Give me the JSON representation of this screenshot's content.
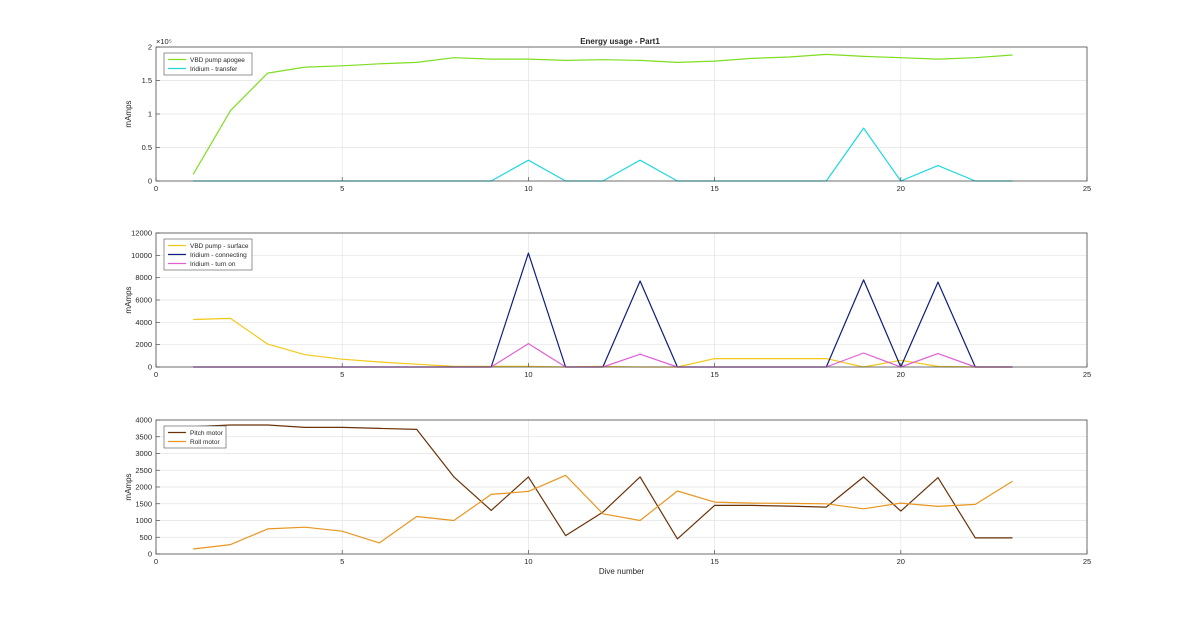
{
  "figure": {
    "title": "Energy usage - Part1"
  },
  "chart_data": [
    {
      "type": "line",
      "title": "Energy usage - Part1",
      "xlabel": "",
      "ylabel": "mAmps",
      "xlim": [
        0,
        25
      ],
      "ylim": [
        0,
        200000
      ],
      "x_ticks": [
        0,
        5,
        10,
        15,
        20,
        25
      ],
      "y_ticks": [
        0,
        50000,
        100000,
        150000,
        200000
      ],
      "y_tick_labels": [
        "0",
        "0.5",
        "1",
        "1.5",
        "2"
      ],
      "y_exponent_label": "×10⁵",
      "grid": true,
      "legend_position": "top-left",
      "x": [
        1,
        2,
        3,
        4,
        5,
        6,
        7,
        8,
        9,
        10,
        11,
        12,
        13,
        14,
        15,
        16,
        17,
        18,
        19,
        20,
        21,
        22,
        23
      ],
      "series": [
        {
          "name": "VBD pump apogee",
          "color": "#7fdd22",
          "values": [
            10000,
            105000,
            161000,
            170000,
            172000,
            175000,
            177000,
            184000,
            182000,
            182000,
            180000,
            181000,
            180000,
            177000,
            179000,
            183000,
            185000,
            189000,
            186000,
            184000,
            182000,
            184000,
            188000
          ]
        },
        {
          "name": "Iridium - transfer",
          "color": "#1fd7e0",
          "values": [
            0,
            0,
            0,
            0,
            0,
            0,
            0,
            0,
            0,
            31000,
            0,
            0,
            31000,
            0,
            0,
            0,
            0,
            0,
            79000,
            0,
            23000,
            0,
            0
          ]
        }
      ]
    },
    {
      "type": "line",
      "title": "",
      "xlabel": "",
      "ylabel": "mAmps",
      "xlim": [
        0,
        25
      ],
      "ylim": [
        0,
        12000
      ],
      "x_ticks": [
        0,
        5,
        10,
        15,
        20,
        25
      ],
      "y_ticks": [
        0,
        2000,
        4000,
        6000,
        8000,
        10000,
        12000
      ],
      "y_tick_labels": [
        "0",
        "2000",
        "4000",
        "6000",
        "8000",
        "10000",
        "12000"
      ],
      "grid": true,
      "legend_position": "top-left",
      "x": [
        1,
        2,
        3,
        4,
        5,
        6,
        7,
        8,
        9,
        10,
        11,
        12,
        13,
        14,
        15,
        16,
        17,
        18,
        19,
        20,
        21,
        22,
        23
      ],
      "series": [
        {
          "name": "VBD pump - surface",
          "color": "#f2c819",
          "values": [
            4250,
            4350,
            2050,
            1100,
            700,
            450,
            250,
            50,
            50,
            50,
            0,
            50,
            0,
            0,
            750,
            750,
            750,
            750,
            0,
            600,
            50,
            0,
            0
          ]
        },
        {
          "name": "Iridium - connecting",
          "color": "#0c1e7a",
          "values": [
            0,
            0,
            0,
            0,
            0,
            0,
            0,
            0,
            0,
            10200,
            0,
            0,
            7700,
            0,
            0,
            0,
            0,
            0,
            7800,
            0,
            7600,
            0,
            0
          ]
        },
        {
          "name": "Iridium - turn on",
          "color": "#e05ed6",
          "values": [
            0,
            0,
            0,
            0,
            0,
            0,
            0,
            0,
            0,
            2100,
            0,
            0,
            1150,
            0,
            0,
            0,
            0,
            0,
            1250,
            0,
            1200,
            0,
            0
          ]
        }
      ]
    },
    {
      "type": "line",
      "title": "",
      "xlabel": "Dive number",
      "ylabel": "mAmps",
      "xlim": [
        0,
        25
      ],
      "ylim": [
        0,
        4000
      ],
      "x_ticks": [
        0,
        5,
        10,
        15,
        20,
        25
      ],
      "y_ticks": [
        0,
        500,
        1000,
        1500,
        2000,
        2500,
        3000,
        3500,
        4000
      ],
      "y_tick_labels": [
        "0",
        "500",
        "1000",
        "1500",
        "2000",
        "2500",
        "3000",
        "3500",
        "4000"
      ],
      "grid": true,
      "legend_position": "top-left",
      "x": [
        1,
        2,
        3,
        4,
        5,
        6,
        7,
        8,
        9,
        10,
        11,
        12,
        13,
        14,
        15,
        16,
        17,
        18,
        19,
        20,
        21,
        22,
        23
      ],
      "series": [
        {
          "name": "Pitch motor",
          "color": "#6b3208",
          "values": [
            3800,
            3850,
            3850,
            3780,
            3780,
            3750,
            3720,
            2300,
            1300,
            2300,
            550,
            1250,
            2300,
            450,
            1450,
            1450,
            1430,
            1400,
            2300,
            1280,
            2280,
            480,
            480
          ]
        },
        {
          "name": "Roll motor",
          "color": "#e89620",
          "values": [
            150,
            280,
            750,
            800,
            680,
            330,
            1120,
            1000,
            1780,
            1870,
            2350,
            1200,
            1000,
            1880,
            1550,
            1520,
            1510,
            1500,
            1350,
            1520,
            1420,
            1480,
            2170
          ]
        }
      ]
    }
  ]
}
